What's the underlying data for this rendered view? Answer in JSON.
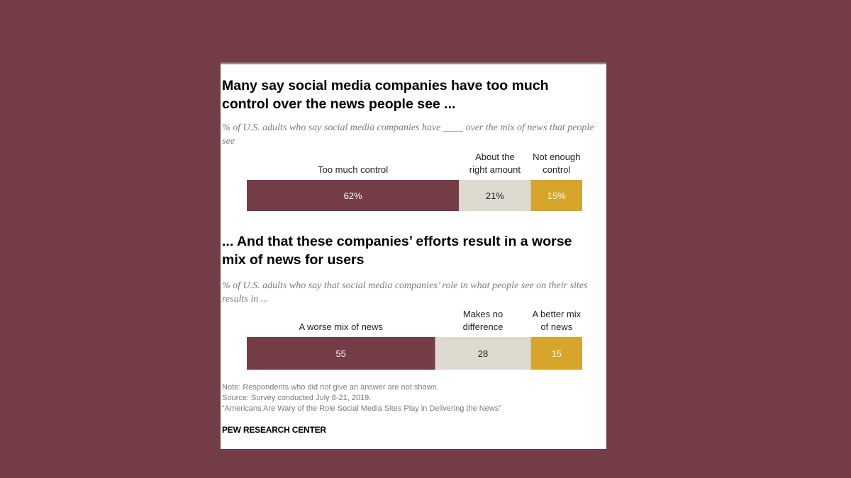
{
  "colors": {
    "background": "#743c46",
    "series_1": "#743c46",
    "series_2": "#ddd9cf",
    "series_3": "#d7a52a"
  },
  "chart_data": [
    {
      "type": "bar",
      "orientation": "horizontal-stacked",
      "title": "Many say social media companies have too much control over the news people see ...",
      "subtitle": "% of U.S. adults who say social media companies have ____ over the mix of news that people see",
      "categories": [
        "Too much control",
        "About the right amount",
        "Not enough control"
      ],
      "category_lines": [
        [
          "Too much control"
        ],
        [
          "About the",
          "right amount"
        ],
        [
          "Not enough",
          "control"
        ]
      ],
      "values": [
        62,
        21,
        15
      ],
      "value_labels": [
        "62%",
        "21%",
        "15%"
      ]
    },
    {
      "type": "bar",
      "orientation": "horizontal-stacked",
      "title": "... And that these companies’ efforts result in a worse mix of news for users",
      "subtitle": "% of U.S. adults who say that social media companies’ role in what people see on their sites results in ...",
      "categories": [
        "A worse mix of news",
        "Makes no difference",
        "A better mix of news"
      ],
      "category_lines": [
        [
          "A worse mix of news"
        ],
        [
          "Makes no",
          "difference"
        ],
        [
          "A better mix",
          "of news"
        ]
      ],
      "values": [
        55,
        28,
        15
      ],
      "value_labels": [
        "55",
        "28",
        "15"
      ]
    }
  ],
  "notes": {
    "note": "Note: Respondents who did not give an answer are not shown.",
    "source": "Source: Survey conducted July 8-21, 2019.",
    "report": "“Americans Are Wary of the Role Social Media Sites Play in Delivering the News”",
    "brand": "PEW RESEARCH CENTER"
  }
}
